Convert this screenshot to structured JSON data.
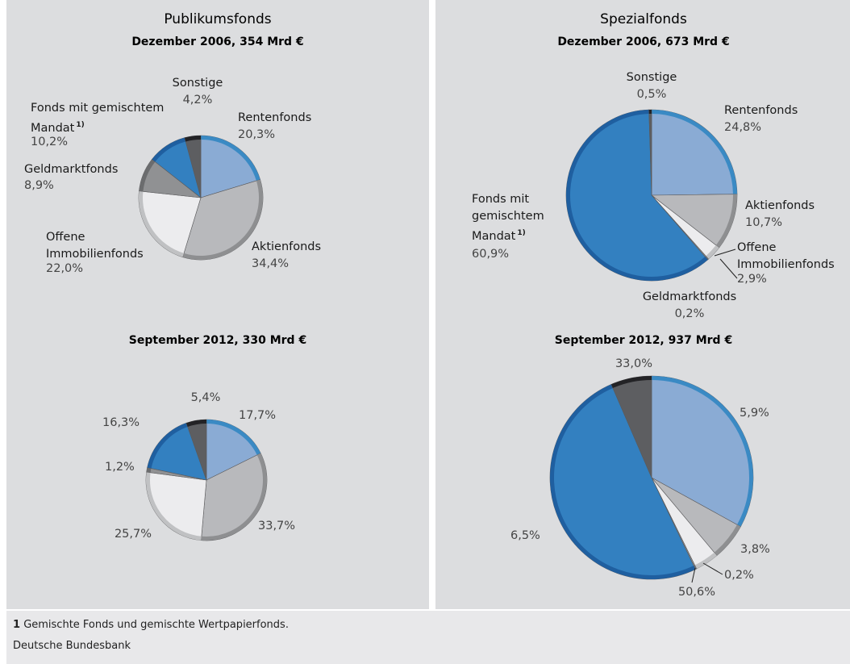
{
  "panels": [
    "Publikumsfonds",
    "Spezialfonds"
  ],
  "chart_data": [
    {
      "type": "pie",
      "title": "Dezember 2006, 354 Mrd €",
      "categories": [
        "Rentenfonds",
        "Aktienfonds",
        "Offene Immobilienfonds",
        "Geldmarktfonds",
        "Fonds mit gemischtem Mandat",
        "Sonstige"
      ],
      "values": [
        20.3,
        34.4,
        22.0,
        8.9,
        10.2,
        4.2
      ],
      "value_labels": [
        "20,3%",
        "34,4%",
        "22,0%",
        "8,9%",
        "10,2%",
        "4,2%"
      ],
      "note": "1)",
      "colors": [
        "#8aabd4",
        "#b8b9bc",
        "#ececee",
        "#909193",
        "#3380c0",
        "#5d5e61"
      ],
      "edge_colors": [
        "#3a8ac4",
        "#8e8f91",
        "#c0c1c3",
        "#6b6c6e",
        "#1f5fa0",
        "#232326"
      ]
    },
    {
      "type": "pie",
      "title": "September 2012, 330 Mrd €",
      "categories": [
        null,
        null,
        null,
        null,
        null,
        null
      ],
      "values": [
        17.7,
        33.7,
        25.7,
        1.2,
        16.3,
        5.4
      ],
      "value_labels": [
        "17,7%",
        "33,7%",
        "25,7%",
        "1,2%",
        "16,3%",
        "5,4%"
      ],
      "colors": [
        "#8aabd4",
        "#b8b9bc",
        "#ececee",
        "#909193",
        "#3380c0",
        "#5d5e61"
      ],
      "edge_colors": [
        "#3a8ac4",
        "#8e8f91",
        "#c0c1c3",
        "#6b6c6e",
        "#1f5fa0",
        "#232326"
      ]
    },
    {
      "type": "pie",
      "title": "Dezember 2006, 673 Mrd €",
      "categories": [
        "Rentenfonds",
        "Aktienfonds",
        "Offene Immobilienfonds",
        "Geldmarktfonds",
        "Fonds mit gemischtem Mandat",
        "Sonstige"
      ],
      "values": [
        24.8,
        10.7,
        2.9,
        0.2,
        60.9,
        0.5
      ],
      "value_labels": [
        "24,8%",
        "10,7%",
        "2,9%",
        "0,2%",
        "60,9%",
        "0,5%"
      ],
      "note": "1)",
      "colors": [
        "#8aabd4",
        "#b8b9bc",
        "#ececee",
        "#909193",
        "#3380c0",
        "#5d5e61"
      ],
      "edge_colors": [
        "#3a8ac4",
        "#8e8f91",
        "#c0c1c3",
        "#6b6c6e",
        "#1f5fa0",
        "#232326"
      ]
    },
    {
      "type": "pie",
      "title": "September 2012, 937 Mrd €",
      "categories": [
        null,
        null,
        null,
        null,
        null,
        null
      ],
      "values": [
        33.0,
        5.9,
        3.8,
        0.2,
        50.6,
        6.5
      ],
      "value_labels": [
        "33,0%",
        "5,9%",
        "3,8%",
        "0,2%",
        "50,6%",
        "6,5%"
      ],
      "colors": [
        "#8aabd4",
        "#b8b9bc",
        "#ececee",
        "#909193",
        "#3380c0",
        "#5d5e61"
      ],
      "edge_colors": [
        "#3a8ac4",
        "#8e8f91",
        "#c0c1c3",
        "#6b6c6e",
        "#1f5fa0",
        "#232326"
      ]
    }
  ],
  "footnote": {
    "mark": "1",
    "text": "Gemischte Fonds und gemischte Wertpapierfonds."
  },
  "source": "Deutsche Bundesbank"
}
